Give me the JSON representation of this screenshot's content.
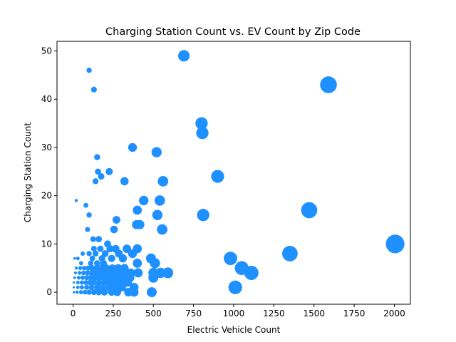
{
  "chart_data": {
    "type": "scatter",
    "title": "Charging Station Count vs. EV Count by Zip Code",
    "xlabel": "Electric Vehicle Count",
    "ylabel": "Charging Station Count",
    "xlim": [
      -100,
      2100
    ],
    "ylim": [
      -2.5,
      52
    ],
    "xticks": [
      0,
      250,
      500,
      750,
      1000,
      1250,
      1500,
      1750,
      2000
    ],
    "yticks": [
      0,
      10,
      20,
      30,
      40,
      50
    ],
    "grid": false,
    "color": "#1e90ff",
    "marker_size": "proportional to Electric Vehicle Count",
    "points": [
      {
        "x": 690,
        "y": 49
      },
      {
        "x": 1590,
        "y": 43
      },
      {
        "x": 100,
        "y": 46
      },
      {
        "x": 130,
        "y": 42
      },
      {
        "x": 800,
        "y": 35
      },
      {
        "x": 805,
        "y": 33
      },
      {
        "x": 370,
        "y": 30
      },
      {
        "x": 520,
        "y": 29
      },
      {
        "x": 150,
        "y": 28
      },
      {
        "x": 900,
        "y": 24
      },
      {
        "x": 225,
        "y": 25
      },
      {
        "x": 155,
        "y": 25
      },
      {
        "x": 175,
        "y": 24
      },
      {
        "x": 140,
        "y": 23
      },
      {
        "x": 320,
        "y": 23
      },
      {
        "x": 560,
        "y": 23
      },
      {
        "x": 20,
        "y": 19
      },
      {
        "x": 80,
        "y": 18
      },
      {
        "x": 440,
        "y": 19
      },
      {
        "x": 540,
        "y": 19
      },
      {
        "x": 1470,
        "y": 17
      },
      {
        "x": 400,
        "y": 17
      },
      {
        "x": 100,
        "y": 16
      },
      {
        "x": 525,
        "y": 16
      },
      {
        "x": 810,
        "y": 16
      },
      {
        "x": 270,
        "y": 15
      },
      {
        "x": 395,
        "y": 14
      },
      {
        "x": 415,
        "y": 14
      },
      {
        "x": 90,
        "y": 13
      },
      {
        "x": 255,
        "y": 13
      },
      {
        "x": 555,
        "y": 13
      },
      {
        "x": 125,
        "y": 11
      },
      {
        "x": 160,
        "y": 11
      },
      {
        "x": 2005,
        "y": 10
      },
      {
        "x": 215,
        "y": 10
      },
      {
        "x": 130,
        "y": 9
      },
      {
        "x": 170,
        "y": 9
      },
      {
        "x": 230,
        "y": 9
      },
      {
        "x": 265,
        "y": 9
      },
      {
        "x": 335,
        "y": 9
      },
      {
        "x": 400,
        "y": 9
      },
      {
        "x": 1350,
        "y": 8
      },
      {
        "x": 60,
        "y": 8
      },
      {
        "x": 100,
        "y": 8
      },
      {
        "x": 140,
        "y": 8
      },
      {
        "x": 200,
        "y": 8
      },
      {
        "x": 285,
        "y": 8
      },
      {
        "x": 370,
        "y": 8
      },
      {
        "x": 980,
        "y": 7
      },
      {
        "x": 10,
        "y": 7
      },
      {
        "x": 30,
        "y": 7
      },
      {
        "x": 120,
        "y": 7
      },
      {
        "x": 180,
        "y": 7
      },
      {
        "x": 240,
        "y": 7
      },
      {
        "x": 310,
        "y": 7
      },
      {
        "x": 485,
        "y": 7
      },
      {
        "x": 50,
        "y": 6
      },
      {
        "x": 110,
        "y": 6
      },
      {
        "x": 150,
        "y": 6
      },
      {
        "x": 190,
        "y": 6
      },
      {
        "x": 400,
        "y": 6
      },
      {
        "x": 510,
        "y": 6
      },
      {
        "x": 1050,
        "y": 5
      },
      {
        "x": 20,
        "y": 5
      },
      {
        "x": 45,
        "y": 5
      },
      {
        "x": 70,
        "y": 5
      },
      {
        "x": 95,
        "y": 5
      },
      {
        "x": 120,
        "y": 5
      },
      {
        "x": 145,
        "y": 5
      },
      {
        "x": 175,
        "y": 5
      },
      {
        "x": 210,
        "y": 5
      },
      {
        "x": 245,
        "y": 5
      },
      {
        "x": 280,
        "y": 5
      },
      {
        "x": 320,
        "y": 5
      },
      {
        "x": 1110,
        "y": 4
      },
      {
        "x": 15,
        "y": 4
      },
      {
        "x": 40,
        "y": 4
      },
      {
        "x": 65,
        "y": 4
      },
      {
        "x": 90,
        "y": 4
      },
      {
        "x": 115,
        "y": 4
      },
      {
        "x": 140,
        "y": 4
      },
      {
        "x": 170,
        "y": 4
      },
      {
        "x": 200,
        "y": 4
      },
      {
        "x": 230,
        "y": 4
      },
      {
        "x": 260,
        "y": 4
      },
      {
        "x": 290,
        "y": 4
      },
      {
        "x": 330,
        "y": 4
      },
      {
        "x": 360,
        "y": 4
      },
      {
        "x": 405,
        "y": 4
      },
      {
        "x": 500,
        "y": 4
      },
      {
        "x": 545,
        "y": 4
      },
      {
        "x": 590,
        "y": 4
      },
      {
        "x": 10,
        "y": 3
      },
      {
        "x": 35,
        "y": 3
      },
      {
        "x": 60,
        "y": 3
      },
      {
        "x": 85,
        "y": 3
      },
      {
        "x": 110,
        "y": 3
      },
      {
        "x": 135,
        "y": 3
      },
      {
        "x": 160,
        "y": 3
      },
      {
        "x": 190,
        "y": 3
      },
      {
        "x": 220,
        "y": 3
      },
      {
        "x": 250,
        "y": 3
      },
      {
        "x": 280,
        "y": 3
      },
      {
        "x": 320,
        "y": 3
      },
      {
        "x": 355,
        "y": 3
      },
      {
        "x": 500,
        "y": 3
      },
      {
        "x": 5,
        "y": 2
      },
      {
        "x": 30,
        "y": 2
      },
      {
        "x": 55,
        "y": 2
      },
      {
        "x": 80,
        "y": 2
      },
      {
        "x": 105,
        "y": 2
      },
      {
        "x": 130,
        "y": 2
      },
      {
        "x": 160,
        "y": 2
      },
      {
        "x": 195,
        "y": 2
      },
      {
        "x": 230,
        "y": 2
      },
      {
        "x": 265,
        "y": 2
      },
      {
        "x": 300,
        "y": 2
      },
      {
        "x": 340,
        "y": 2
      },
      {
        "x": 5,
        "y": 1
      },
      {
        "x": 30,
        "y": 1
      },
      {
        "x": 55,
        "y": 1
      },
      {
        "x": 85,
        "y": 1
      },
      {
        "x": 115,
        "y": 1
      },
      {
        "x": 150,
        "y": 1
      },
      {
        "x": 185,
        "y": 1
      },
      {
        "x": 225,
        "y": 1
      },
      {
        "x": 265,
        "y": 1
      },
      {
        "x": 305,
        "y": 1
      },
      {
        "x": 380,
        "y": 1
      },
      {
        "x": 1010,
        "y": 1
      },
      {
        "x": 5,
        "y": 0
      },
      {
        "x": 25,
        "y": 0
      },
      {
        "x": 50,
        "y": 0
      },
      {
        "x": 75,
        "y": 0
      },
      {
        "x": 100,
        "y": 0
      },
      {
        "x": 130,
        "y": 0
      },
      {
        "x": 160,
        "y": 0
      },
      {
        "x": 195,
        "y": 0
      },
      {
        "x": 240,
        "y": 0
      },
      {
        "x": 275,
        "y": 0
      },
      {
        "x": 345,
        "y": 0
      },
      {
        "x": 380,
        "y": 0
      },
      {
        "x": 490,
        "y": 0
      }
    ]
  }
}
